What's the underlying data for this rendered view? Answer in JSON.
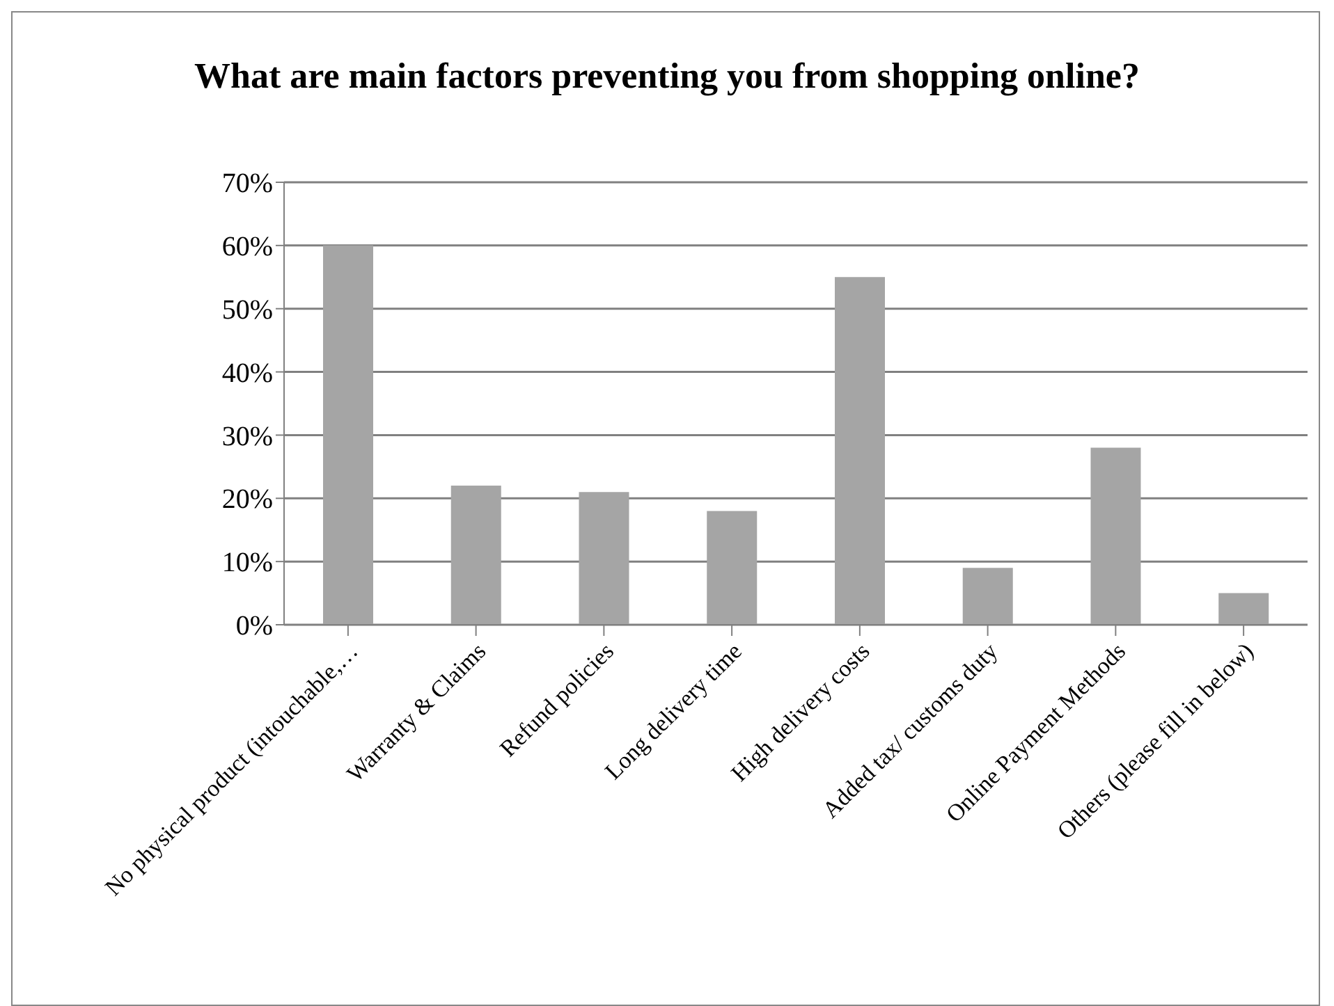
{
  "chart_data": {
    "type": "bar",
    "title": "What are main factors preventing you from shopping online?",
    "categories": [
      "No physical product (intouchable,…",
      "Warranty & Claims",
      "Refund policies",
      "Long delivery time",
      "High delivery costs",
      "Added tax/ customs duty",
      "Online Payment Methods",
      "Others (please fill in below)"
    ],
    "values": [
      60,
      22,
      21,
      18,
      55,
      9,
      28,
      5
    ],
    "color": "#a5a5a5",
    "ylim": [
      0,
      70
    ],
    "yticks": [
      {
        "value": 0,
        "label": "0%"
      },
      {
        "value": 10,
        "label": "10%"
      },
      {
        "value": 20,
        "label": "20%"
      },
      {
        "value": 30,
        "label": "30%"
      },
      {
        "value": 40,
        "label": "40%"
      },
      {
        "value": 50,
        "label": "50%"
      },
      {
        "value": 60,
        "label": "60%"
      },
      {
        "value": 70,
        "label": "70%"
      }
    ],
    "grid": "y",
    "legend": false
  }
}
